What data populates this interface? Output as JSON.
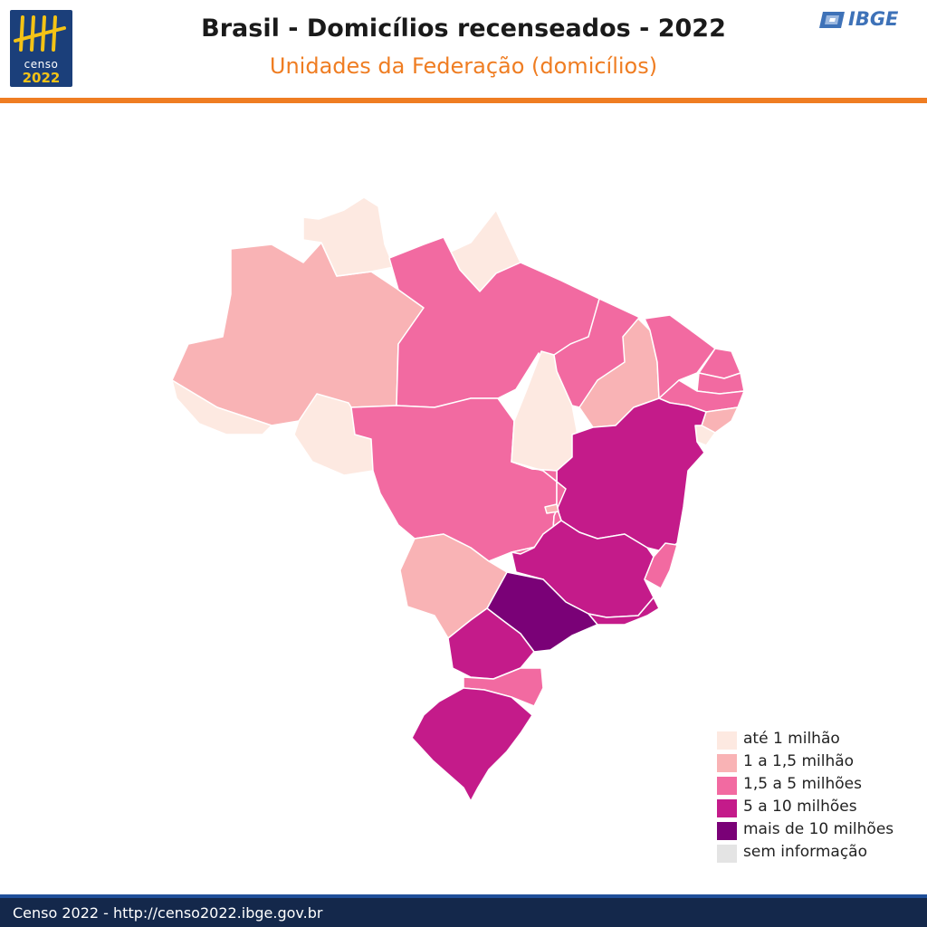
{
  "header": {
    "title": "Brasil - Domicílios recenseados - 2022",
    "subtitle": "Unidades da Federação (domicílios)"
  },
  "logos": {
    "censo_word": "censo",
    "censo_year": "2022",
    "ibge_text": "IBGE"
  },
  "map": {
    "regions": [
      {
        "id": "AM",
        "class": "1 a 1,5 milhão"
      },
      {
        "id": "RR",
        "class": "até 1 milhão"
      },
      {
        "id": "AP",
        "class": "até 1 milhão"
      },
      {
        "id": "AC",
        "class": "até 1 milhão"
      },
      {
        "id": "RO",
        "class": "até 1 milhão"
      },
      {
        "id": "PA",
        "class": "1,5 a 5 milhões"
      },
      {
        "id": "MT",
        "class": "1,5 a 5 milhões"
      },
      {
        "id": "TO",
        "class": "até 1 milhão"
      },
      {
        "id": "MA",
        "class": "1,5 a 5 milhões"
      },
      {
        "id": "PI",
        "class": "1 a 1,5 milhão"
      },
      {
        "id": "CE",
        "class": "1,5 a 5 milhões"
      },
      {
        "id": "RN",
        "class": "1,5 a 5 milhões"
      },
      {
        "id": "PB",
        "class": "1,5 a 5 milhões"
      },
      {
        "id": "PE",
        "class": "1,5 a 5 milhões"
      },
      {
        "id": "AL",
        "class": "1 a 1,5 milhão"
      },
      {
        "id": "SE",
        "class": "até 1 milhão"
      },
      {
        "id": "BA",
        "class": "5 a 10 milhões"
      },
      {
        "id": "GO",
        "class": "1,5 a 5 milhões"
      },
      {
        "id": "DF",
        "class": "1 a 1,5 milhão"
      },
      {
        "id": "MG",
        "class": "5 a 10 milhões"
      },
      {
        "id": "ES",
        "class": "1,5 a 5 milhões"
      },
      {
        "id": "RJ",
        "class": "5 a 10 milhões"
      },
      {
        "id": "SP",
        "class": "mais de 10 milhões"
      },
      {
        "id": "MS",
        "class": "1 a 1,5 milhão"
      },
      {
        "id": "PR",
        "class": "5 a 10 milhões"
      },
      {
        "id": "SC",
        "class": "1,5 a 5 milhões"
      },
      {
        "id": "RS",
        "class": "5 a 10 milhões"
      }
    ]
  },
  "legend": {
    "items": [
      {
        "label": "até 1 milhão",
        "color": "#fde9e1"
      },
      {
        "label": "1 a 1,5 milhão",
        "color": "#f9b3b5"
      },
      {
        "label": "1,5 a 5 milhões",
        "color": "#f26aa1"
      },
      {
        "label": "5 a 10 milhões",
        "color": "#c41b8a"
      },
      {
        "label": "mais de 10 milhões",
        "color": "#7a0177"
      },
      {
        "label": "sem informação",
        "color": "#e4e4e4"
      }
    ]
  },
  "footer": {
    "text": "Censo 2022 - http://censo2022.ibge.gov.br"
  }
}
